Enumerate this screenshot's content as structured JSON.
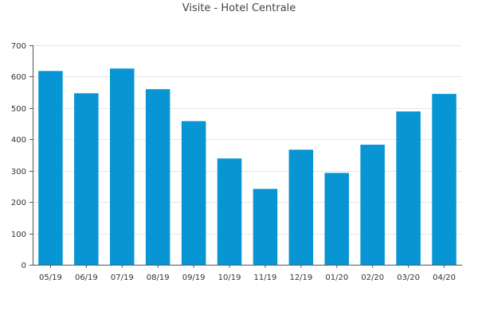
{
  "chart_data": {
    "type": "bar",
    "title": "Visite - Hotel Centrale",
    "xlabel": "",
    "ylabel": "",
    "categories": [
      "05/19",
      "06/19",
      "07/19",
      "08/19",
      "09/19",
      "10/19",
      "11/19",
      "12/19",
      "01/20",
      "02/20",
      "03/20",
      "04/20"
    ],
    "values": [
      618,
      547,
      626,
      560,
      458,
      339,
      242,
      367,
      293,
      383,
      489,
      545
    ],
    "ylim": [
      0,
      700
    ],
    "yticks": [
      0,
      100,
      200,
      300,
      400,
      500,
      600,
      700
    ],
    "grid": true,
    "legend": "none",
    "colors": {
      "bar": "#0796d3",
      "grid": "#e6e6e6",
      "axis": "#555555"
    }
  }
}
